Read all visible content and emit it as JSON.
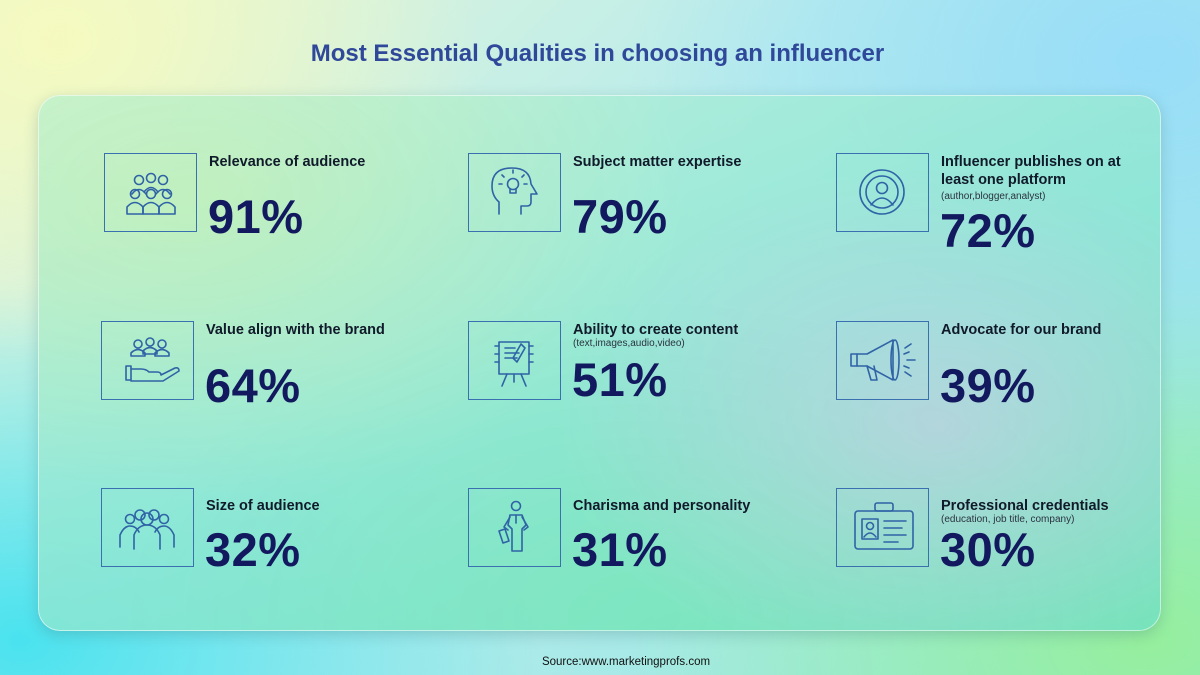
{
  "title": "Most Essential Qualities in choosing an influencer",
  "source": "Source:www.marketingprofs.com",
  "accent_color": "#30489a",
  "value_color": "#12195e",
  "icon_color": "#2f63a6",
  "items": [
    {
      "label": "Relevance of audience",
      "sub": "",
      "value": "91%",
      "icon": "audience-group-icon"
    },
    {
      "label": "Subject matter expertise",
      "sub": "",
      "value": "79%",
      "icon": "head-lightbulb-icon"
    },
    {
      "label": "Influencer publishes on at least one platform",
      "sub": "(author,blogger,analyst)",
      "value": "72%",
      "icon": "broadcasting-person-icon"
    },
    {
      "label": "Value align with the brand",
      "sub": "",
      "value": "64%",
      "icon": "hand-holding-people-icon"
    },
    {
      "label": "Ability to create content",
      "sub": "(text,images,audio,video)",
      "value": "51%",
      "icon": "document-on-easel-icon"
    },
    {
      "label": "Advocate for our brand",
      "sub": "",
      "value": "39%",
      "icon": "megaphone-icon"
    },
    {
      "label": "Size of audience",
      "sub": "",
      "value": "32%",
      "icon": "crowd-icon"
    },
    {
      "label": "Charisma and personality",
      "sub": "",
      "value": "31%",
      "icon": "confident-person-icon"
    },
    {
      "label": "Professional credentials",
      "sub": "(education, job title, company)",
      "value": "30%",
      "icon": "id-badge-icon"
    }
  ]
}
